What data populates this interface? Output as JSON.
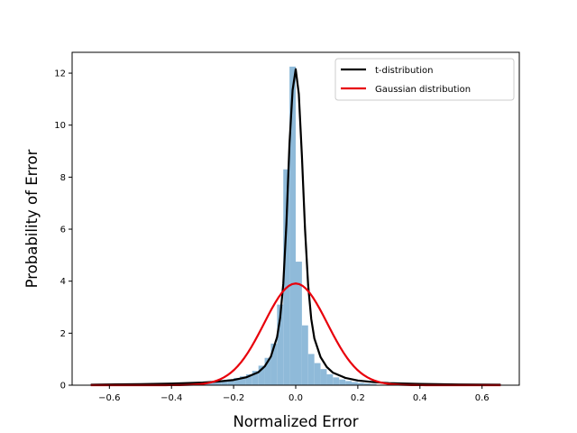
{
  "chart_data": {
    "type": "bar",
    "title": "",
    "xlabel": "Normalized Error",
    "ylabel": "Probability of Error",
    "xlim": [
      -0.72,
      0.72
    ],
    "ylim": [
      0,
      12.8
    ],
    "x_ticks": [
      -0.6,
      -0.4,
      -0.2,
      0.0,
      0.2,
      0.4,
      0.6
    ],
    "x_tick_labels": [
      "−0.6",
      "−0.4",
      "−0.2",
      "0.0",
      "0.2",
      "0.4",
      "0.6"
    ],
    "y_ticks": [
      0,
      2,
      4,
      6,
      8,
      10,
      12
    ],
    "y_tick_labels": [
      "0",
      "2",
      "4",
      "6",
      "8",
      "10",
      "12"
    ],
    "grid": false,
    "legend_position": "top-right",
    "histogram": {
      "bin_edges": [
        -0.42,
        -0.4,
        -0.38,
        -0.36,
        -0.34,
        -0.32,
        -0.3,
        -0.28,
        -0.26,
        -0.24,
        -0.22,
        -0.2,
        -0.18,
        -0.16,
        -0.14,
        -0.12,
        -0.1,
        -0.08,
        -0.06,
        -0.04,
        -0.02,
        0.0,
        0.02,
        0.04,
        0.06,
        0.08,
        0.1,
        0.12,
        0.14,
        0.16,
        0.18,
        0.2,
        0.22,
        0.24,
        0.26
      ],
      "values": [
        0.05,
        0.06,
        0.08,
        0.1,
        0.12,
        0.1,
        0.13,
        0.12,
        0.14,
        0.18,
        0.22,
        0.28,
        0.34,
        0.42,
        0.55,
        0.75,
        1.05,
        1.6,
        3.1,
        8.3,
        12.25,
        4.75,
        2.3,
        1.2,
        0.85,
        0.62,
        0.42,
        0.3,
        0.22,
        0.16,
        0.12,
        0.09,
        0.07,
        0.05
      ],
      "color": "#8fbad9"
    },
    "series": [
      {
        "name": "t-distribution",
        "color": "#000000",
        "x": [
          -0.66,
          -0.5,
          -0.4,
          -0.3,
          -0.25,
          -0.2,
          -0.16,
          -0.12,
          -0.1,
          -0.08,
          -0.06,
          -0.05,
          -0.04,
          -0.03,
          -0.02,
          -0.01,
          0.0,
          0.01,
          0.02,
          0.03,
          0.04,
          0.05,
          0.06,
          0.08,
          0.1,
          0.12,
          0.16,
          0.2,
          0.25,
          0.3,
          0.4,
          0.5,
          0.66
        ],
        "y": [
          0.02,
          0.04,
          0.06,
          0.1,
          0.14,
          0.2,
          0.3,
          0.5,
          0.72,
          1.1,
          1.85,
          2.6,
          3.9,
          6.2,
          9.3,
          11.35,
          12.15,
          11.2,
          8.8,
          6.0,
          3.85,
          2.55,
          1.8,
          1.08,
          0.7,
          0.48,
          0.28,
          0.18,
          0.12,
          0.08,
          0.05,
          0.03,
          0.02
        ]
      },
      {
        "name": "Gaussian distribution",
        "color": "#e8000b",
        "gaussian": {
          "mean": 0.0,
          "std": 0.102,
          "samples": 121
        }
      }
    ]
  }
}
